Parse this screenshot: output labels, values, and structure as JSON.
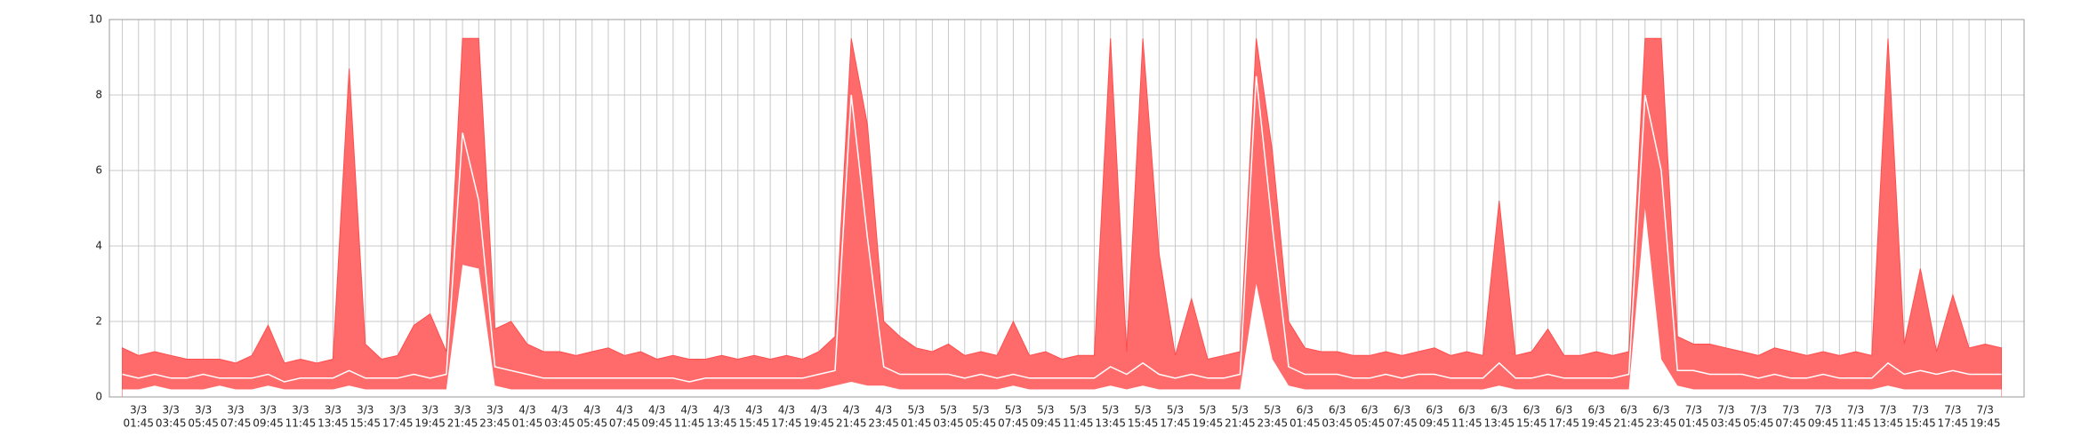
{
  "chart_data": {
    "type": "band",
    "categories": [
      null,
      {
        "date": "3/3",
        "time": "01:45"
      },
      null,
      {
        "date": "3/3",
        "time": "03:45"
      },
      null,
      {
        "date": "3/3",
        "time": "05:45"
      },
      null,
      {
        "date": "3/3",
        "time": "07:45"
      },
      null,
      {
        "date": "3/3",
        "time": "09:45"
      },
      null,
      {
        "date": "3/3",
        "time": "11:45"
      },
      null,
      {
        "date": "3/3",
        "time": "13:45"
      },
      null,
      {
        "date": "3/3",
        "time": "15:45"
      },
      null,
      {
        "date": "3/3",
        "time": "17:45"
      },
      null,
      {
        "date": "3/3",
        "time": "19:45"
      },
      null,
      {
        "date": "3/3",
        "time": "21:45"
      },
      null,
      {
        "date": "3/3",
        "time": "23:45"
      },
      null,
      {
        "date": "4/3",
        "time": "01:45"
      },
      null,
      {
        "date": "4/3",
        "time": "03:45"
      },
      null,
      {
        "date": "4/3",
        "time": "05:45"
      },
      null,
      {
        "date": "4/3",
        "time": "07:45"
      },
      null,
      {
        "date": "4/3",
        "time": "09:45"
      },
      null,
      {
        "date": "4/3",
        "time": "11:45"
      },
      null,
      {
        "date": "4/3",
        "time": "13:45"
      },
      null,
      {
        "date": "4/3",
        "time": "15:45"
      },
      null,
      {
        "date": "4/3",
        "time": "17:45"
      },
      null,
      {
        "date": "4/3",
        "time": "19:45"
      },
      null,
      {
        "date": "4/3",
        "time": "21:45"
      },
      null,
      {
        "date": "4/3",
        "time": "23:45"
      },
      null,
      {
        "date": "5/3",
        "time": "01:45"
      },
      null,
      {
        "date": "5/3",
        "time": "03:45"
      },
      null,
      {
        "date": "5/3",
        "time": "05:45"
      },
      null,
      {
        "date": "5/3",
        "time": "07:45"
      },
      null,
      {
        "date": "5/3",
        "time": "09:45"
      },
      null,
      {
        "date": "5/3",
        "time": "11:45"
      },
      null,
      {
        "date": "5/3",
        "time": "13:45"
      },
      null,
      {
        "date": "5/3",
        "time": "15:45"
      },
      null,
      {
        "date": "5/3",
        "time": "17:45"
      },
      null,
      {
        "date": "5/3",
        "time": "19:45"
      },
      null,
      {
        "date": "5/3",
        "time": "21:45"
      },
      null,
      {
        "date": "5/3",
        "time": "23:45"
      },
      null,
      {
        "date": "6/3",
        "time": "01:45"
      },
      null,
      {
        "date": "6/3",
        "time": "03:45"
      },
      null,
      {
        "date": "6/3",
        "time": "05:45"
      },
      null,
      {
        "date": "6/3",
        "time": "07:45"
      },
      null,
      {
        "date": "6/3",
        "time": "09:45"
      },
      null,
      {
        "date": "6/3",
        "time": "11:45"
      },
      null,
      {
        "date": "6/3",
        "time": "13:45"
      },
      null,
      {
        "date": "6/3",
        "time": "15:45"
      },
      null,
      {
        "date": "6/3",
        "time": "17:45"
      },
      null,
      {
        "date": "6/3",
        "time": "19:45"
      },
      null,
      {
        "date": "6/3",
        "time": "21:45"
      },
      null,
      {
        "date": "6/3",
        "time": "23:45"
      },
      null,
      {
        "date": "7/3",
        "time": "01:45"
      },
      null,
      {
        "date": "7/3",
        "time": "03:45"
      },
      null,
      {
        "date": "7/3",
        "time": "05:45"
      },
      null,
      {
        "date": "7/3",
        "time": "07:45"
      },
      null,
      {
        "date": "7/3",
        "time": "09:45"
      },
      null,
      {
        "date": "7/3",
        "time": "11:45"
      },
      null,
      {
        "date": "7/3",
        "time": "13:45"
      },
      null,
      {
        "date": "7/3",
        "time": "15:45"
      },
      null,
      {
        "date": "7/3",
        "time": "17:45"
      },
      null,
      {
        "date": "7/3",
        "time": "19:45"
      },
      null
    ],
    "series": [
      {
        "color": "#ff6b6b",
        "area": true,
        "values": [
          1.3,
          1.1,
          1.2,
          1.1,
          1.0,
          1.0,
          1.0,
          0.9,
          1.1,
          1.9,
          0.9,
          1.0,
          0.9,
          1.0,
          8.7,
          1.4,
          1.0,
          1.1,
          1.9,
          2.2,
          1.2,
          9.5,
          9.5,
          1.8,
          2.0,
          1.4,
          1.2,
          1.2,
          1.1,
          1.2,
          1.3,
          1.1,
          1.2,
          1.0,
          1.1,
          1.0,
          1.0,
          1.1,
          1.0,
          1.1,
          1.0,
          1.1,
          1.0,
          1.2,
          1.6,
          9.5,
          7.2,
          2.0,
          1.6,
          1.3,
          1.2,
          1.4,
          1.1,
          1.2,
          1.1,
          2.0,
          1.1,
          1.2,
          1.0,
          1.1,
          1.1,
          9.5,
          1.2,
          9.5,
          3.8,
          1.1,
          2.6,
          1.0,
          1.1,
          1.2,
          9.5,
          6.5,
          2.0,
          1.3,
          1.2,
          1.2,
          1.1,
          1.1,
          1.2,
          1.1,
          1.2,
          1.3,
          1.1,
          1.2,
          1.1,
          5.2,
          1.1,
          1.2,
          1.8,
          1.1,
          1.1,
          1.2,
          1.1,
          1.2,
          9.5,
          9.5,
          1.6,
          1.4,
          1.4,
          1.3,
          1.2,
          1.1,
          1.3,
          1.2,
          1.1,
          1.2,
          1.1,
          1.2,
          1.1,
          9.5,
          1.4,
          3.4,
          1.2,
          2.7,
          1.3,
          1.4,
          1.3
        ]
      },
      {
        "color": "#ffffff",
        "area": true,
        "values": [
          0.2,
          0.2,
          0.3,
          0.2,
          0.2,
          0.2,
          0.3,
          0.2,
          0.2,
          0.3,
          0.2,
          0.2,
          0.2,
          0.2,
          0.3,
          0.2,
          0.2,
          0.2,
          0.2,
          0.2,
          0.2,
          3.5,
          3.4,
          0.3,
          0.2,
          0.2,
          0.2,
          0.2,
          0.2,
          0.2,
          0.2,
          0.2,
          0.2,
          0.2,
          0.2,
          0.2,
          0.2,
          0.2,
          0.2,
          0.2,
          0.2,
          0.2,
          0.2,
          0.2,
          0.3,
          0.4,
          0.3,
          0.3,
          0.2,
          0.2,
          0.2,
          0.2,
          0.2,
          0.2,
          0.2,
          0.3,
          0.2,
          0.2,
          0.2,
          0.2,
          0.2,
          0.3,
          0.2,
          0.3,
          0.2,
          0.2,
          0.2,
          0.2,
          0.2,
          0.2,
          3.0,
          1.0,
          0.3,
          0.2,
          0.2,
          0.2,
          0.2,
          0.2,
          0.2,
          0.2,
          0.2,
          0.2,
          0.2,
          0.2,
          0.2,
          0.3,
          0.2,
          0.2,
          0.2,
          0.2,
          0.2,
          0.2,
          0.2,
          0.2,
          5.0,
          1.0,
          0.3,
          0.2,
          0.2,
          0.2,
          0.2,
          0.2,
          0.2,
          0.2,
          0.2,
          0.2,
          0.2,
          0.2,
          0.2,
          0.3,
          0.2,
          0.2,
          0.2,
          0.2,
          0.2,
          0.2,
          0.2
        ]
      },
      {
        "color": "#ffffff",
        "area": false,
        "values": [
          0.6,
          0.5,
          0.6,
          0.5,
          0.5,
          0.6,
          0.5,
          0.5,
          0.5,
          0.6,
          0.4,
          0.5,
          0.5,
          0.5,
          0.7,
          0.5,
          0.5,
          0.5,
          0.6,
          0.5,
          0.6,
          7.0,
          5.2,
          0.8,
          0.7,
          0.6,
          0.5,
          0.5,
          0.5,
          0.5,
          0.5,
          0.5,
          0.5,
          0.5,
          0.5,
          0.4,
          0.5,
          0.5,
          0.5,
          0.5,
          0.5,
          0.5,
          0.5,
          0.6,
          0.7,
          8.0,
          4.2,
          0.8,
          0.6,
          0.6,
          0.6,
          0.6,
          0.5,
          0.6,
          0.5,
          0.6,
          0.5,
          0.5,
          0.5,
          0.5,
          0.5,
          0.8,
          0.6,
          0.9,
          0.6,
          0.5,
          0.6,
          0.5,
          0.5,
          0.6,
          8.5,
          4.5,
          0.8,
          0.6,
          0.6,
          0.6,
          0.5,
          0.5,
          0.6,
          0.5,
          0.6,
          0.6,
          0.5,
          0.5,
          0.5,
          0.9,
          0.5,
          0.5,
          0.6,
          0.5,
          0.5,
          0.5,
          0.5,
          0.6,
          8.0,
          6.0,
          0.7,
          0.7,
          0.6,
          0.6,
          0.6,
          0.5,
          0.6,
          0.5,
          0.5,
          0.6,
          0.5,
          0.5,
          0.5,
          0.9,
          0.6,
          0.7,
          0.6,
          0.7,
          0.6,
          0.6,
          0.6
        ]
      }
    ],
    "ylim": [
      0,
      10
    ],
    "yticks": [
      0,
      2,
      4,
      6,
      8,
      10
    ],
    "grid": true
  }
}
